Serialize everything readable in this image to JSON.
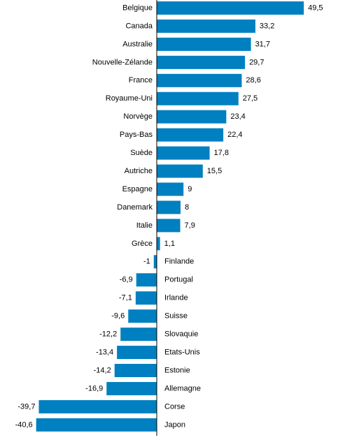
{
  "chart_data": {
    "type": "bar",
    "orientation": "horizontal",
    "title": "",
    "xlabel": "",
    "ylabel": "",
    "categories": [
      "Belgique",
      "Canada",
      "Australie",
      "Nouvelle-Zélande",
      "France",
      "Royaume-Uni",
      "Norvège",
      "Pays-Bas",
      "Suède",
      "Autriche",
      "Espagne",
      "Danemark",
      "Italie",
      "Grèce",
      "Finlande",
      "Portugal",
      "Irlande",
      "Suisse",
      "Slovaquie",
      "Etats-Unis",
      "Estonie",
      "Allemagne",
      "Corse",
      "Japon"
    ],
    "values": [
      49.5,
      33.2,
      31.7,
      29.7,
      28.6,
      27.5,
      23.4,
      22.4,
      17.8,
      15.5,
      9,
      8,
      7.9,
      1.1,
      -1,
      -6.9,
      -7.1,
      -9.6,
      -12.2,
      -13.4,
      -14.2,
      -16.9,
      -39.7,
      -40.6
    ],
    "value_labels": [
      "49,5",
      "33,2",
      "31,7",
      "29,7",
      "28,6",
      "27,5",
      "23,4",
      "22,4",
      "17,8",
      "15,5",
      "9",
      "8",
      "7,9",
      "1,1",
      "-1",
      "-6,9",
      "-7,1",
      "-9,6",
      "-12,2",
      "-13,4",
      "-14,2",
      "-16,9",
      "-39,7",
      "-40,6"
    ],
    "grid": false,
    "legend": "none",
    "bar_color": "#0080C0",
    "axis_color": "#000000"
  }
}
